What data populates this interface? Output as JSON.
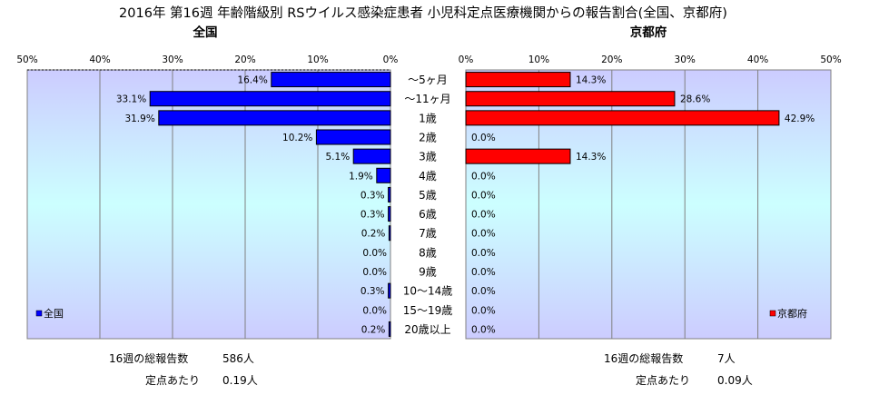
{
  "title": "2016年 第16週 年齢階級別 RSウイルス感染症患者 小児科定点医療機関からの報告割合(全国、京都府)",
  "chart_data": [
    {
      "type": "bar",
      "orientation": "horizontal",
      "direction": "right-to-left",
      "title": "全国",
      "xlim": [
        0,
        50
      ],
      "x_ticks": [
        "50%",
        "40%",
        "30%",
        "20%",
        "10%",
        "0%"
      ],
      "categories": [
        "～5ヶ月",
        "～11ヶ月",
        "1歳",
        "2歳",
        "3歳",
        "4歳",
        "5歳",
        "6歳",
        "7歳",
        "8歳",
        "9歳",
        "10～14歳",
        "15～19歳",
        "20歳以上"
      ],
      "series": [
        {
          "name": "全国",
          "color": "#0000ff",
          "values": [
            16.4,
            33.1,
            31.9,
            10.2,
            5.1,
            1.9,
            0.3,
            0.3,
            0.2,
            0.0,
            0.0,
            0.3,
            0.0,
            0.2
          ],
          "labels": [
            "16.4%",
            "33.1%",
            "31.9%",
            "10.2%",
            "5.1%",
            "1.9%",
            "0.3%",
            "0.3%",
            "0.2%",
            "0.0%",
            "0.0%",
            "0.3%",
            "0.0%",
            "0.2%"
          ]
        }
      ],
      "legend": "bottom-left",
      "grid": true
    },
    {
      "type": "bar",
      "orientation": "horizontal",
      "direction": "left-to-right",
      "title": "京都府",
      "xlim": [
        0,
        50
      ],
      "x_ticks": [
        "0%",
        "10%",
        "20%",
        "30%",
        "40%",
        "50%"
      ],
      "categories": [
        "～5ヶ月",
        "～11ヶ月",
        "1歳",
        "2歳",
        "3歳",
        "4歳",
        "5歳",
        "6歳",
        "7歳",
        "8歳",
        "9歳",
        "10～14歳",
        "15～19歳",
        "20歳以上"
      ],
      "series": [
        {
          "name": "京都府",
          "color": "#ff0000",
          "values": [
            14.3,
            28.6,
            42.9,
            0.0,
            14.3,
            0.0,
            0.0,
            0.0,
            0.0,
            0.0,
            0.0,
            0.0,
            0.0,
            0.0
          ],
          "labels": [
            "14.3%",
            "28.6%",
            "42.9%",
            "0.0%",
            "14.3%",
            "0.0%",
            "0.0%",
            "0.0%",
            "0.0%",
            "0.0%",
            "0.0%",
            "0.0%",
            "0.0%",
            "0.0%"
          ]
        }
      ],
      "legend": "bottom-right",
      "grid": true
    }
  ],
  "stats": {
    "national": {
      "total_label": "16週の総報告数",
      "total_value": "586人",
      "per_label": "定点あたり",
      "per_value": "0.19人"
    },
    "kyoto": {
      "total_label": "16週の総報告数",
      "total_value": "7人",
      "per_label": "定点あたり",
      "per_value": "0.09人"
    }
  }
}
